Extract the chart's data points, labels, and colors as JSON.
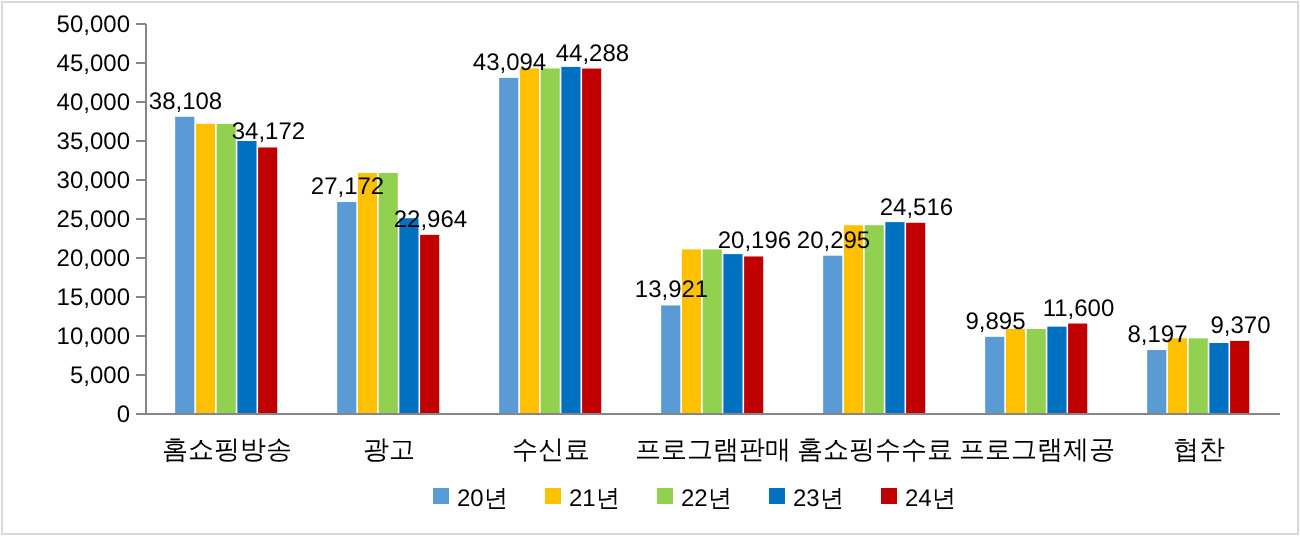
{
  "chart_data": {
    "type": "bar",
    "categories": [
      "홈쇼핑방송",
      "광고",
      "수신료",
      "프로그램판매",
      "홈쇼핑수수료",
      "프로그램제공",
      "협찬"
    ],
    "series": [
      {
        "name": "20년",
        "color": "#5b9bd5",
        "values": [
          38108,
          27172,
          43094,
          13921,
          20295,
          9895,
          8197
        ],
        "value_labels": [
          "38,108",
          "27,172",
          "43,094",
          "13,921",
          "20,295",
          "9,895",
          "8,197"
        ]
      },
      {
        "name": "21년",
        "color": "#ffc000",
        "values": [
          37200,
          30900,
          44300,
          21100,
          24200,
          10900,
          9700
        ]
      },
      {
        "name": "22년",
        "color": "#92d050",
        "values": [
          37200,
          30900,
          44300,
          21100,
          24200,
          10900,
          9700
        ]
      },
      {
        "name": "23년",
        "color": "#0070c0",
        "values": [
          35000,
          25100,
          44500,
          20500,
          24600,
          11200,
          9100
        ]
      },
      {
        "name": "24년",
        "color": "#c00000",
        "values": [
          34172,
          22964,
          44288,
          20196,
          24516,
          11600,
          9370
        ],
        "value_labels": [
          "34,172",
          "22,964",
          "44,288",
          "20,196",
          "24,516",
          "11,600",
          "9,370"
        ]
      }
    ],
    "ylim": [
      0,
      50000
    ],
    "yticks": [
      {
        "value": 0,
        "label": "0"
      },
      {
        "value": 5000,
        "label": "5,000"
      },
      {
        "value": 10000,
        "label": "10,000"
      },
      {
        "value": 15000,
        "label": "15,000"
      },
      {
        "value": 20000,
        "label": "20,000"
      },
      {
        "value": 25000,
        "label": "25,000"
      },
      {
        "value": 30000,
        "label": "30,000"
      },
      {
        "value": 35000,
        "label": "35,000"
      },
      {
        "value": 40000,
        "label": "40,000"
      },
      {
        "value": 45000,
        "label": "45,000"
      },
      {
        "value": 50000,
        "label": "50,000"
      }
    ],
    "legend": "bottom"
  }
}
